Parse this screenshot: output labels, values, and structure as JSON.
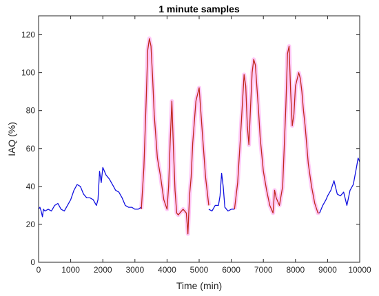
{
  "chart_data": {
    "type": "line",
    "title": "1 minute samples",
    "xlabel": "Time (min)",
    "ylabel": "IAQ (%)",
    "xlim": [
      0,
      10000
    ],
    "ylim": [
      0,
      130
    ],
    "xticks": [
      0,
      1000,
      2000,
      3000,
      4000,
      5000,
      6000,
      7000,
      8000,
      9000,
      10000
    ],
    "yticks": [
      0,
      20,
      40,
      60,
      80,
      100,
      120
    ],
    "grid": false,
    "box": true,
    "legend": "none",
    "colors": {
      "blue": "#1010e0",
      "red": "#c0281a",
      "highlight": "#ff9df0",
      "axis": "#262626"
    },
    "series": [
      {
        "color": "blue",
        "x": [
          0,
          40,
          80,
          120,
          150,
          200,
          300,
          400,
          500,
          600,
          700,
          800,
          900,
          1000,
          1100,
          1200,
          1300,
          1400,
          1500,
          1600,
          1700,
          1800,
          1850,
          1900,
          1950,
          2000,
          2100,
          2200,
          2300,
          2400,
          2500,
          2600,
          2700,
          2800,
          2900,
          3000,
          3100,
          3200
        ],
        "y": [
          28,
          29,
          27,
          24,
          28,
          27,
          28,
          27,
          30,
          31,
          28,
          27,
          30,
          33,
          38,
          41,
          40,
          36,
          34,
          34,
          33,
          30,
          33,
          48,
          42,
          50,
          46,
          44,
          41,
          38,
          37,
          34,
          30,
          29,
          29,
          28,
          28,
          29
        ]
      },
      {
        "color": "red",
        "x": [
          3200,
          3280,
          3350,
          3400,
          3450,
          3500,
          3550,
          3600,
          3700,
          3800,
          3900,
          4000,
          4050,
          4100,
          4150,
          4200,
          4250,
          4300,
          4350,
          4400,
          4500,
          4600,
          4650,
          4700,
          4750,
          4800,
          4900,
          5000,
          5100,
          5200,
          5300
        ],
        "y": [
          28,
          50,
          85,
          112,
          118,
          114,
          98,
          78,
          55,
          45,
          33,
          28,
          40,
          65,
          85,
          60,
          38,
          26,
          25,
          26,
          28,
          26,
          15,
          35,
          45,
          63,
          85,
          92,
          68,
          45,
          30
        ]
      },
      {
        "color": "blue",
        "x": [
          5300,
          5400,
          5500,
          5600,
          5650,
          5700,
          5750,
          5800,
          5900,
          6000,
          6100
        ],
        "y": [
          28,
          27,
          30,
          30,
          35,
          47,
          40,
          29,
          27,
          28,
          28
        ]
      },
      {
        "color": "red",
        "x": [
          6100,
          6200,
          6300,
          6400,
          6450,
          6500,
          6550,
          6600,
          6650,
          6700,
          6750,
          6800,
          6850,
          6900,
          7000,
          7100,
          7200,
          7300,
          7350,
          7400,
          7500,
          7600,
          7700,
          7750,
          7800,
          7850,
          7900,
          7950,
          8000,
          8100,
          8150,
          8200,
          8250,
          8300,
          8400,
          8500,
          8600,
          8700,
          8750
        ],
        "y": [
          28,
          42,
          70,
          99,
          93,
          72,
          62,
          82,
          100,
          107,
          104,
          92,
          80,
          66,
          48,
          38,
          30,
          26,
          38,
          34,
          30,
          40,
          82,
          110,
          114,
          90,
          72,
          78,
          93,
          100,
          97,
          90,
          80,
          72,
          52,
          40,
          31,
          26,
          26
        ]
      },
      {
        "color": "blue",
        "x": [
          8750,
          8850,
          8950,
          9000,
          9100,
          9200,
          9300,
          9400,
          9500,
          9600,
          9700,
          9800,
          9900,
          9950,
          10000
        ],
        "y": [
          26,
          30,
          33,
          35,
          38,
          43,
          36,
          35,
          37,
          30,
          38,
          41,
          50,
          55,
          53
        ]
      }
    ]
  }
}
